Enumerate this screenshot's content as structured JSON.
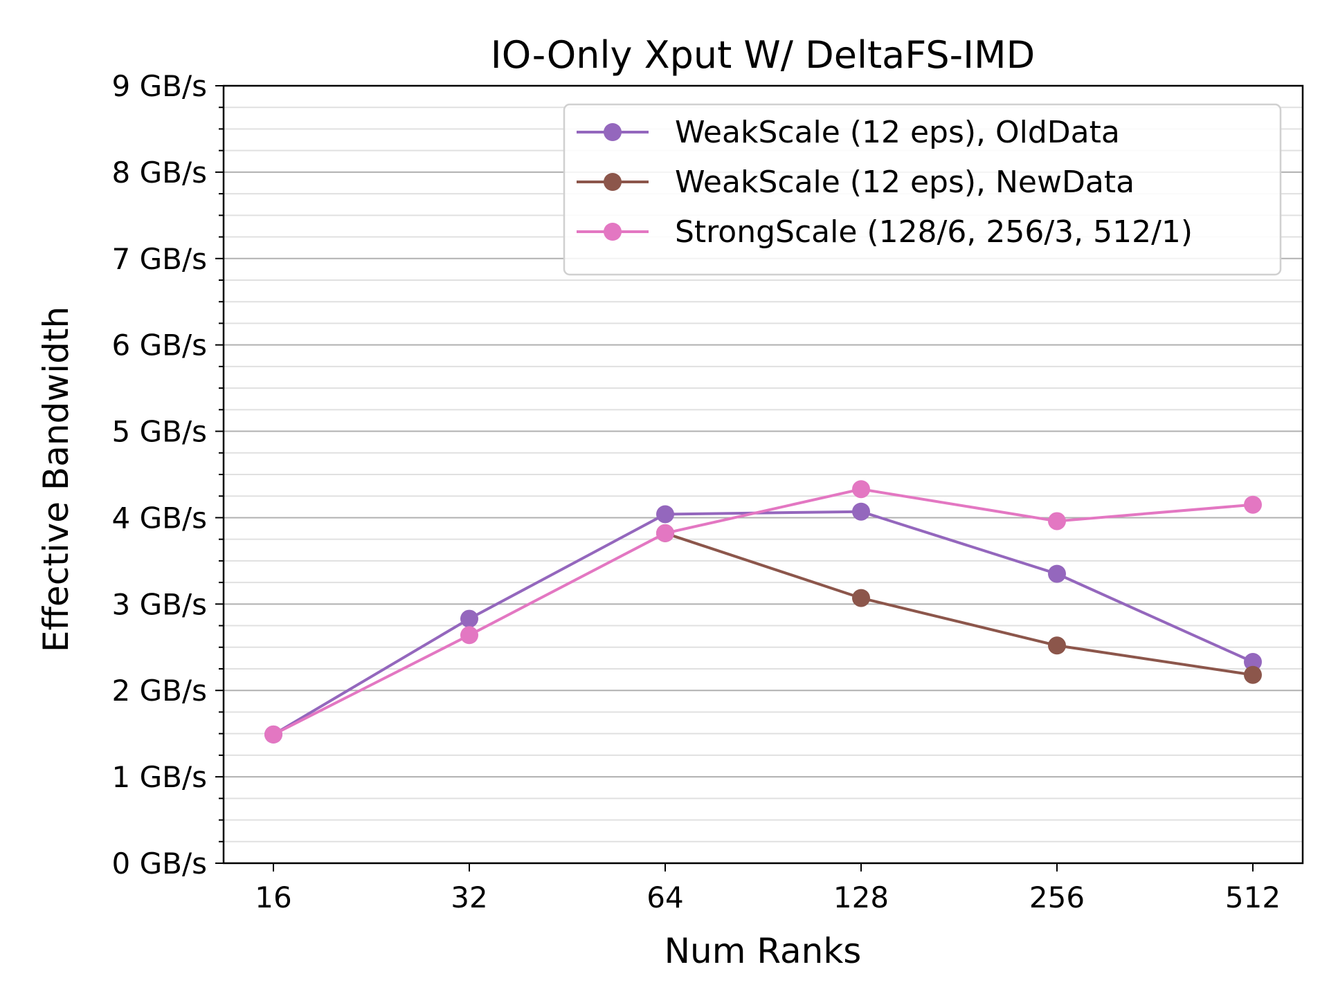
{
  "chart_data": {
    "type": "line",
    "title": "IO-Only Xput W/ DeltaFS-IMD",
    "xlabel": "Num Ranks",
    "ylabel": "Effective Bandwidth",
    "categories": [
      "16",
      "32",
      "64",
      "128",
      "256",
      "512"
    ],
    "ylim": [
      0,
      9
    ],
    "y_ticks": [
      0,
      1,
      2,
      3,
      4,
      5,
      6,
      7,
      8,
      9
    ],
    "y_tick_labels": [
      "0 GB/s",
      "1 GB/s",
      "2 GB/s",
      "3 GB/s",
      "4 GB/s",
      "5 GB/s",
      "6 GB/s",
      "7 GB/s",
      "8 GB/s",
      "9 GB/s"
    ],
    "y_minor_step": 0.25,
    "grid": "horizontal major and minor",
    "legend_position": "top-right",
    "series": [
      {
        "name": "WeakScale (12 eps), OldData",
        "color": "#9467bd",
        "values": [
          1.49,
          2.83,
          4.04,
          4.07,
          3.35,
          2.33
        ]
      },
      {
        "name": "WeakScale (12 eps), NewData",
        "color": "#8c564b",
        "values": [
          null,
          null,
          3.82,
          3.07,
          2.52,
          2.18
        ]
      },
      {
        "name": "StrongScale (128/6, 256/3, 512/1)",
        "color": "#e377c2",
        "values": [
          1.49,
          2.64,
          3.82,
          4.33,
          3.96,
          4.15
        ]
      }
    ]
  }
}
